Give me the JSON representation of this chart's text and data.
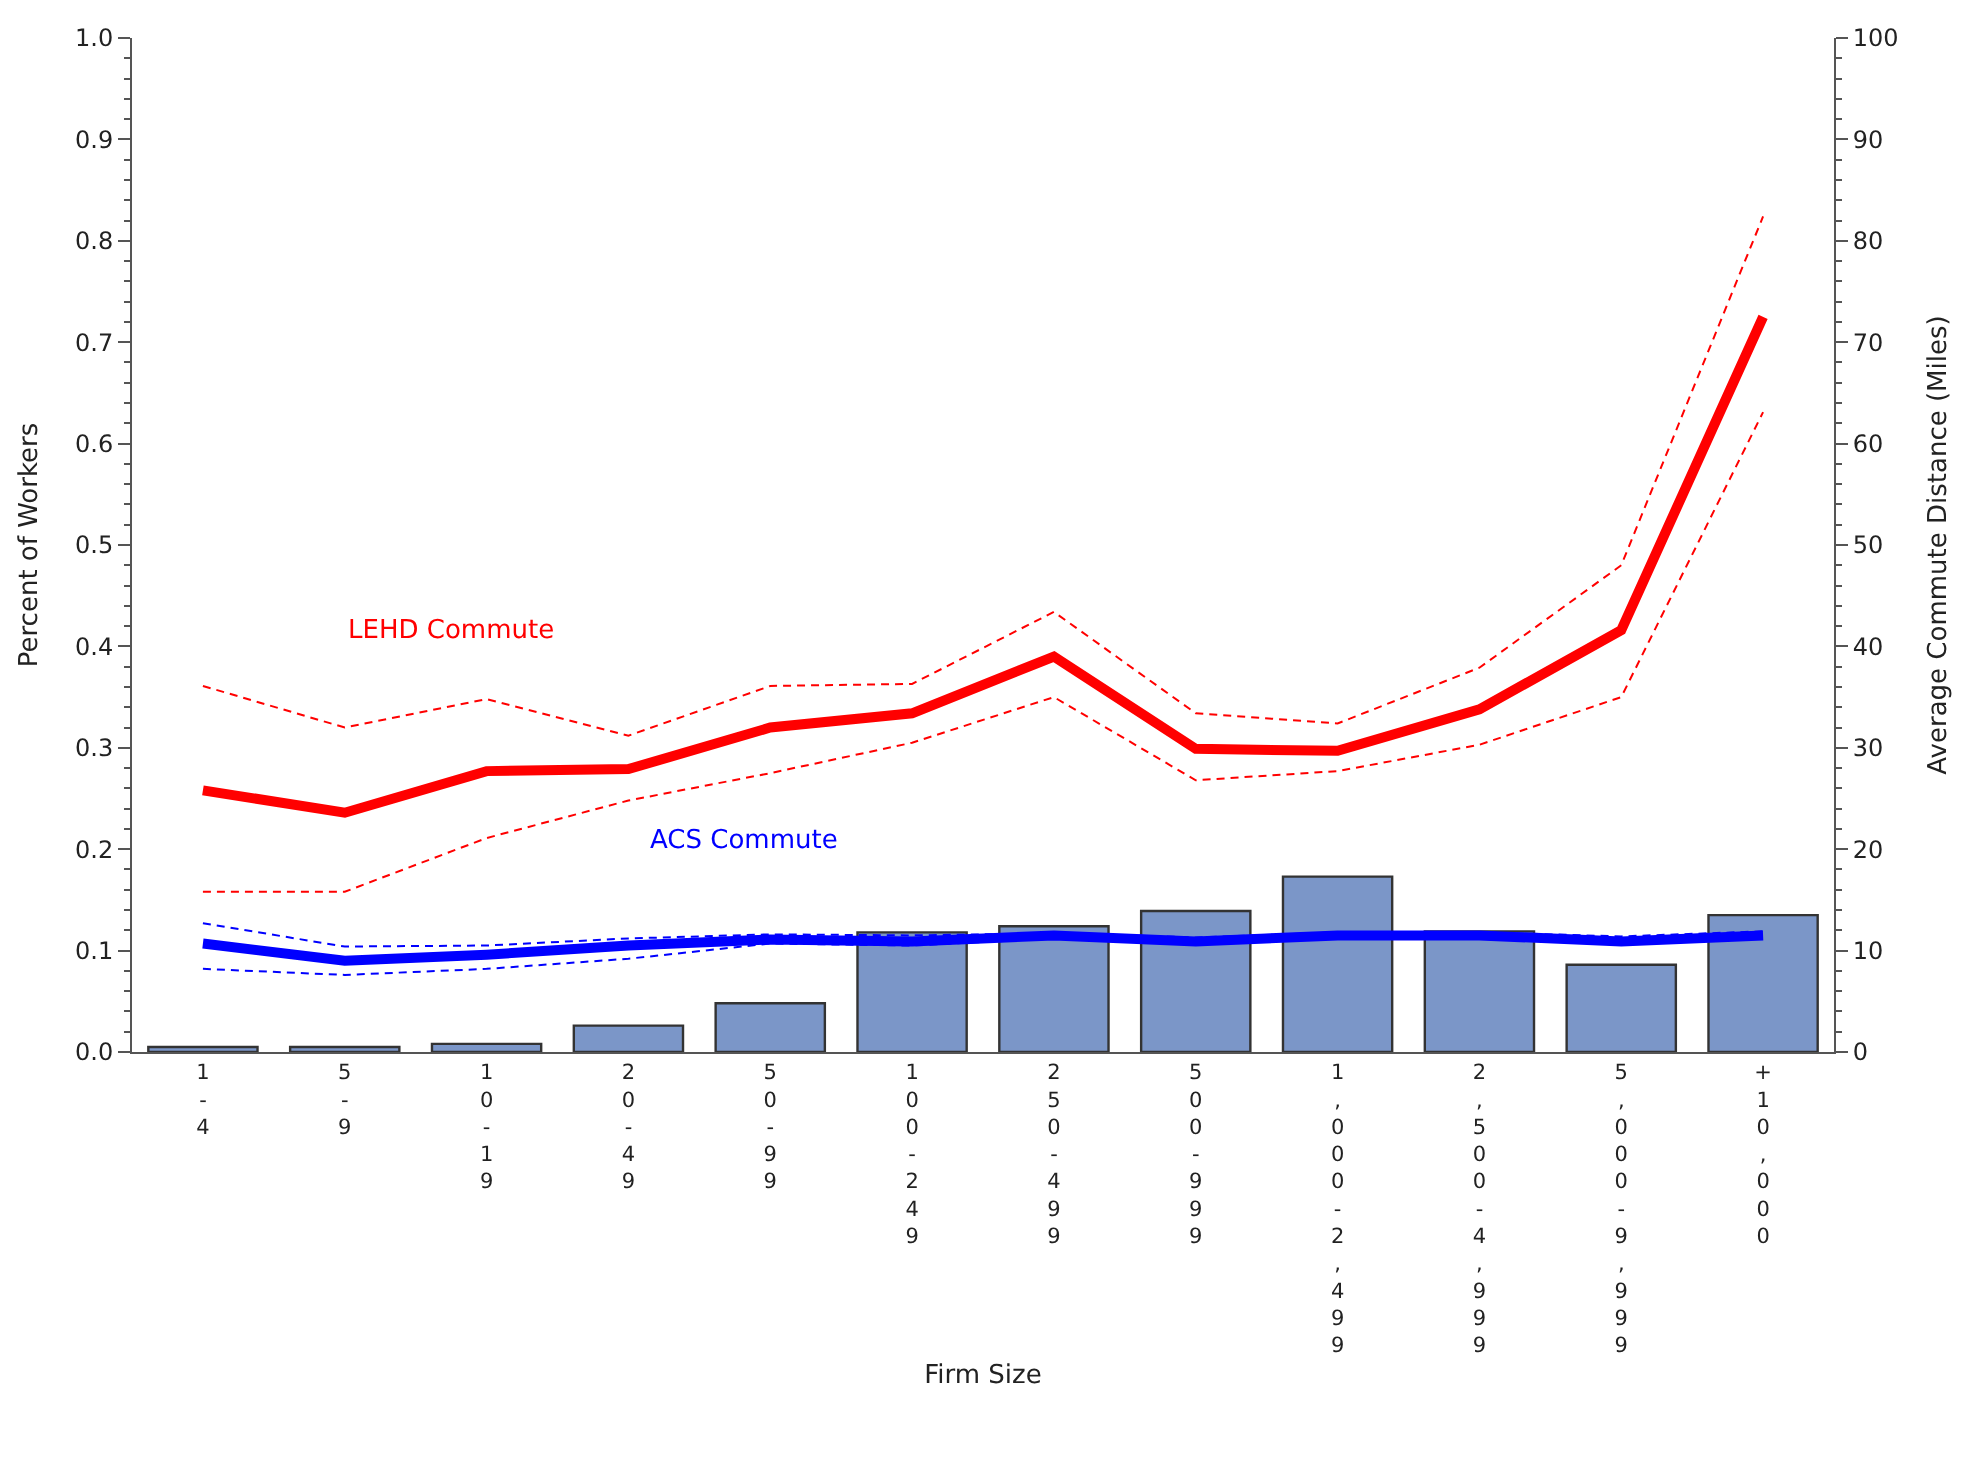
{
  "chart_data": {
    "type": "bar",
    "xlabel": "Firm Size",
    "ylabel": "Percent of Workers",
    "y2label": "Average Commute Distance (Miles)",
    "categories": [
      "1-4",
      "5-9",
      "10-19",
      "20-49",
      "50-99",
      "100-249",
      "250-499",
      "500-999",
      "1,000-2,499",
      "2,500-4,999",
      "5,000-9,999",
      "+10,000"
    ],
    "series": [
      {
        "color": "#7b96c8",
        "values": [
          0.005,
          0.005,
          0.008,
          0.026,
          0.048,
          0.118,
          0.124,
          0.139,
          0.173,
          0.119,
          0.086,
          0.135
        ]
      },
      {
        "type": "line",
        "axis": "y2",
        "color": "#ff0000",
        "line_style": "dashed",
        "values": [
          15.8,
          15.8,
          21.1,
          24.8,
          27.5,
          30.5,
          35.0,
          26.8,
          27.7,
          30.3,
          35.0,
          63.1
        ]
      },
      {
        "type": "line",
        "axis": "y2",
        "color": "#ff0000",
        "line_style": "dashed",
        "values": [
          36.1,
          32.0,
          34.8,
          31.2,
          36.1,
          36.3,
          43.4,
          33.4,
          32.4,
          37.9,
          48.0,
          82.4
        ]
      },
      {
        "type": "line",
        "axis": "y2",
        "color": "#ff0000",
        "values": [
          25.8,
          23.6,
          27.7,
          27.9,
          32.0,
          33.4,
          39.0,
          29.9,
          29.7,
          33.8,
          41.6,
          72.5
        ]
      },
      {
        "type": "line",
        "axis": "y2",
        "color": "#0000ff",
        "line_style": "dashed",
        "values": [
          8.2,
          7.6,
          8.2,
          9.2,
          10.7,
          10.5,
          11.2,
          10.6,
          11.3,
          11.3,
          10.6,
          11.3
        ]
      },
      {
        "type": "line",
        "axis": "y2",
        "color": "#0000ff",
        "line_style": "dashed",
        "values": [
          12.7,
          10.4,
          10.5,
          11.2,
          11.6,
          11.5,
          11.7,
          11.3,
          11.8,
          11.8,
          11.4,
          11.9
        ]
      },
      {
        "type": "line",
        "axis": "y2",
        "color": "#0000ff",
        "values": [
          10.7,
          9.0,
          9.6,
          10.5,
          11.1,
          10.9,
          11.5,
          10.9,
          11.5,
          11.5,
          10.9,
          11.5
        ]
      }
    ],
    "annotations": [
      "LEHD Commute",
      "ACS Commute"
    ],
    "ylim": [
      0,
      1.0
    ],
    "yticks": [
      {
        "value": 0,
        "label": "0.0"
      },
      0.1,
      0.2,
      0.3,
      0.4,
      0.5,
      0.6,
      0.7,
      0.8,
      0.9,
      {
        "value": 1.0,
        "label": "1.0"
      }
    ],
    "y2lim": [
      0,
      100
    ],
    "y2ticks": [
      0,
      10,
      20,
      30,
      40,
      50,
      60,
      70,
      80,
      90,
      100
    ],
    "line_style": "solid"
  }
}
